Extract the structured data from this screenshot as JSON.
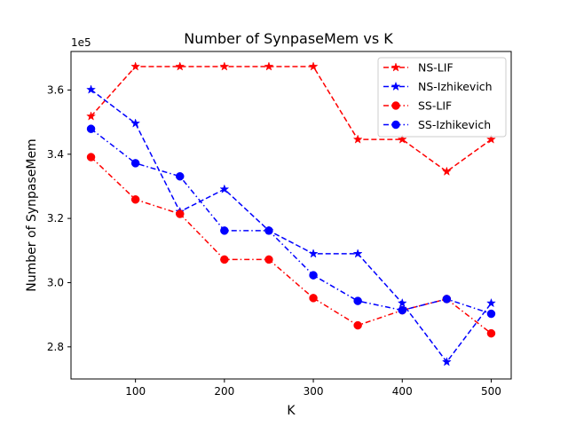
{
  "chart_data": {
    "type": "line",
    "title": "Number of SynpaseMem vs K",
    "xlabel": "K",
    "ylabel": "Number of SynpaseMem",
    "y_offset_label": "1e5",
    "xlim": [
      27.5,
      522.5
    ],
    "ylim": [
      270000,
      372000
    ],
    "xticks": [
      100,
      200,
      300,
      400,
      500
    ],
    "xtick_labels": [
      "100",
      "200",
      "300",
      "400",
      "500"
    ],
    "yticks": [
      280000,
      300000,
      320000,
      340000,
      360000
    ],
    "ytick_labels": [
      "2.8",
      "3.0",
      "3.2",
      "3.4",
      "3.6"
    ],
    "grid": false,
    "legend_position": "top-right",
    "x": [
      50,
      100,
      150,
      200,
      250,
      300,
      350,
      400,
      450,
      500
    ],
    "series": [
      {
        "name": "NS-LIF",
        "color": "#ff0000",
        "marker": "star",
        "linestyle": "dashed",
        "values": [
          351800,
          367300,
          367300,
          367300,
          367300,
          367300,
          344600,
          344600,
          334600,
          344600
        ]
      },
      {
        "name": "NS-Izhikevich",
        "color": "#0000ff",
        "marker": "star",
        "linestyle": "dashed",
        "values": [
          360100,
          349600,
          322100,
          329100,
          316200,
          309000,
          309000,
          293600,
          275300,
          293600
        ]
      },
      {
        "name": "SS-LIF",
        "color": "#ff0000",
        "marker": "circle",
        "linestyle": "dashdot",
        "values": [
          339100,
          325900,
          321400,
          307200,
          307200,
          295200,
          286700,
          291400,
          294900,
          284200
        ]
      },
      {
        "name": "SS-Izhikevich",
        "color": "#0000ff",
        "marker": "circle",
        "linestyle": "dashdot",
        "values": [
          347900,
          337200,
          333100,
          316200,
          316200,
          302300,
          294300,
          291400,
          294900,
          290300
        ]
      }
    ]
  }
}
